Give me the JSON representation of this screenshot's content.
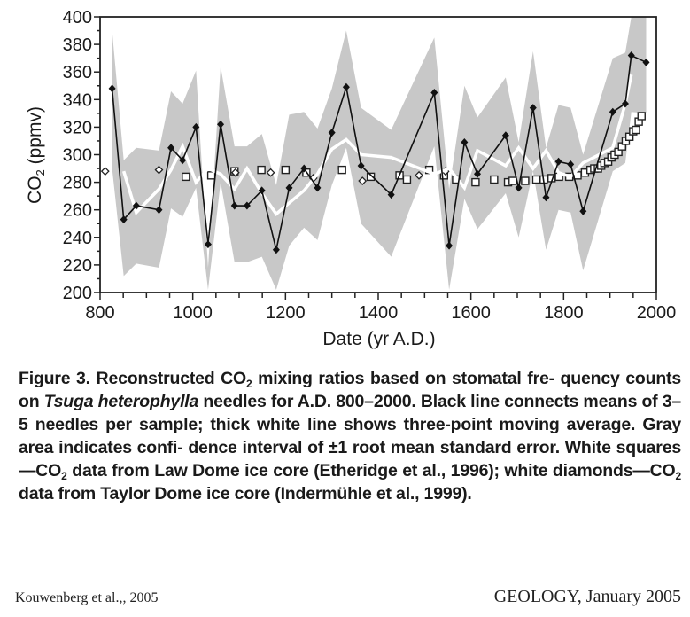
{
  "chart_data": {
    "type": "line",
    "title": "",
    "xlabel": "Date (yr A.D.)",
    "ylabel_main": "CO",
    "ylabel_sub": "2",
    "ylabel_unit": " (ppmv)",
    "xlim": [
      800,
      2000
    ],
    "ylim": [
      200,
      400
    ],
    "xticks": [
      800,
      1000,
      1200,
      1400,
      1600,
      1800,
      2000
    ],
    "xminor_step": 50,
    "yticks": [
      200,
      220,
      240,
      260,
      280,
      300,
      320,
      340,
      360,
      380,
      400
    ],
    "yminor_step": 10,
    "grid": false,
    "colors": {
      "band": "#c8c8c8",
      "black_line": "#111111",
      "moving_avg": "#ffffff",
      "axis": "#222222"
    },
    "series": [
      {
        "name": "Stomatal CO2 reconstruction (means of 3-5 needles)",
        "style": "black line with filled diamonds",
        "x": [
          826,
          851,
          878,
          927,
          953,
          978,
          1007,
          1033,
          1060,
          1090,
          1117,
          1149,
          1180,
          1208,
          1240,
          1269,
          1300,
          1331,
          1363,
          1428,
          1521,
          1553,
          1586,
          1614,
          1675,
          1703,
          1734,
          1762,
          1789,
          1815,
          1842,
          1906,
          1933,
          1946,
          1978
        ],
        "y": [
          348,
          253,
          263,
          260,
          305,
          296,
          320,
          235,
          322,
          263,
          263,
          274,
          231,
          276,
          290,
          276,
          316,
          349,
          292,
          271,
          345,
          234,
          309,
          286,
          314,
          276,
          334,
          269,
          295,
          293,
          259,
          331,
          337,
          372,
          367
        ]
      },
      {
        "name": "Three-point moving average",
        "style": "thick white line",
        "x": [
          851,
          878,
          927,
          953,
          978,
          1007,
          1033,
          1060,
          1090,
          1117,
          1149,
          1180,
          1208,
          1240,
          1269,
          1300,
          1331,
          1363,
          1428,
          1521,
          1553,
          1586,
          1614,
          1675,
          1703,
          1734,
          1762,
          1789,
          1815,
          1842,
          1906,
          1933,
          1946
        ],
        "y": [
          288,
          258,
          275,
          289,
          306,
          280,
          290,
          286,
          275,
          290,
          272,
          257,
          265,
          274,
          286,
          304,
          311,
          300,
          298,
          286,
          290,
          276,
          303,
          292,
          305,
          290,
          303,
          287,
          284,
          294,
          305,
          337,
          358
        ]
      },
      {
        "name": "Confidence interval ±1 RMSE (upper)",
        "style": "gray band upper",
        "x": [
          826,
          851,
          878,
          927,
          953,
          978,
          1007,
          1033,
          1060,
          1090,
          1117,
          1149,
          1180,
          1208,
          1240,
          1269,
          1300,
          1331,
          1363,
          1428,
          1521,
          1553,
          1586,
          1614,
          1675,
          1703,
          1734,
          1762,
          1789,
          1815,
          1842,
          1906,
          1933,
          1946,
          1978
        ],
        "y": [
          390,
          296,
          305,
          303,
          346,
          337,
          361,
          218,
          364,
          306,
          306,
          315,
          278,
          329,
          331,
          319,
          348,
          390,
          334,
          318,
          385,
          275,
          350,
          327,
          356,
          309,
          375,
          305,
          336,
          334,
          300,
          370,
          374,
          400,
          400
        ]
      },
      {
        "name": "Confidence interval ±1 RMSE (lower)",
        "style": "gray band lower",
        "x": [
          826,
          851,
          878,
          927,
          953,
          978,
          1007,
          1033,
          1060,
          1090,
          1117,
          1149,
          1180,
          1208,
          1240,
          1269,
          1300,
          1331,
          1363,
          1428,
          1521,
          1553,
          1586,
          1614,
          1675,
          1703,
          1734,
          1762,
          1789,
          1815,
          1842,
          1906,
          1933,
          1946,
          1978
        ],
        "y": [
          290,
          212,
          221,
          218,
          261,
          255,
          276,
          202,
          280,
          222,
          222,
          226,
          202,
          234,
          247,
          238,
          278,
          305,
          250,
          226,
          306,
          202,
          268,
          246,
          272,
          240,
          288,
          231,
          260,
          258,
          216,
          288,
          294,
          331,
          330
        ]
      },
      {
        "name": "Law Dome ice core (Etheridge et al., 1996)",
        "style": "white squares",
        "x": [
          985,
          1040,
          1090,
          1148,
          1200,
          1245,
          1322,
          1384,
          1446,
          1462,
          1510,
          1542,
          1568,
          1610,
          1650,
          1680,
          1690,
          1717,
          1741,
          1757,
          1774,
          1790,
          1812,
          1830,
          1846,
          1858,
          1866,
          1874,
          1881,
          1888,
          1896,
          1903,
          1910,
          1918,
          1926,
          1934,
          1942,
          1950,
          1956,
          1962,
          1968
        ],
        "y": [
          284,
          285,
          288,
          289,
          289,
          287,
          289,
          284,
          285,
          282,
          289,
          285,
          282,
          280,
          282,
          280,
          281,
          281,
          282,
          282,
          283,
          284,
          284,
          285,
          287,
          289,
          290,
          290,
          292,
          294,
          295,
          298,
          300,
          302,
          306,
          310,
          313,
          317,
          318,
          324,
          328
        ]
      },
      {
        "name": "Taylor Dome ice core (Indermühle et al., 1999)",
        "style": "white diamonds",
        "x": [
          811,
          927,
          1092,
          1168,
          1260,
          1366,
          1488,
          1545
        ],
        "y": [
          288,
          289,
          287,
          287,
          283,
          281,
          285,
          288
        ]
      }
    ]
  },
  "caption": {
    "fig_label": "Figure 3.",
    "part1": " Reconstructed CO",
    "sub1": "2",
    "part2": " mixing ratios based on stomatal fre- quency counts on ",
    "species": "Tsuga heterophylla",
    "part3": " needles for A.D. 800–2000. Black line connects means of 3–5 needles per sample; thick white line shows three-point moving average. Gray area indicates confi- dence interval of ±1 root mean standard error. White squares—CO",
    "sub2": "2",
    "part4": " data from Law Dome ice core (Etheridge et al., 1996); white diamonds—CO",
    "sub3": "2",
    "part5": " data from Taylor Dome ice core (Indermühle et al., 1999)."
  },
  "footer": {
    "left": "Kouwenberg et al.,, 2005",
    "right": "GEOLOGY, January 2005"
  }
}
